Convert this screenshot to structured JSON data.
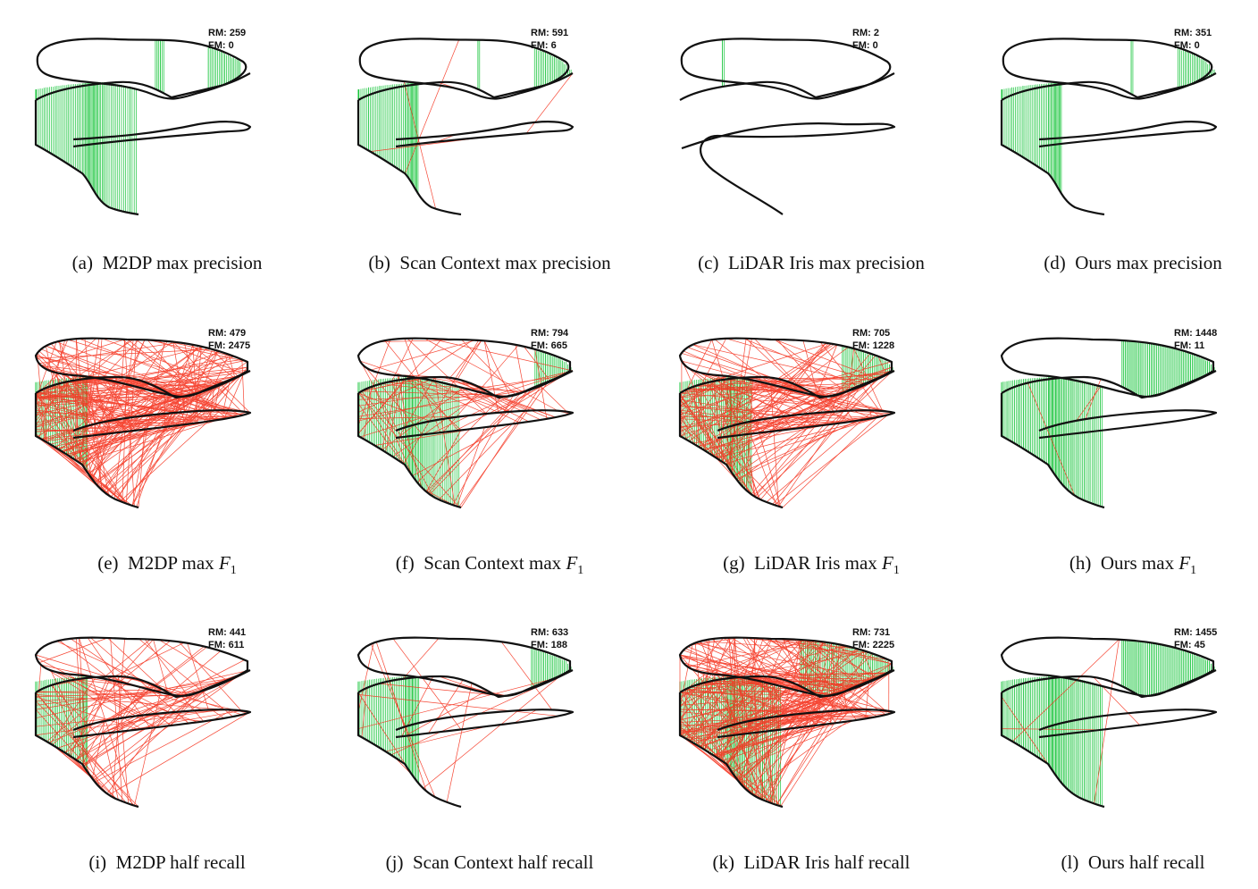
{
  "figure": {
    "panels": [
      {
        "label": "(a)",
        "method": "M2DP",
        "setting": "max precision",
        "rm_label": "RM: 259",
        "fm_label": "FM: 0",
        "variant": "two",
        "green": [
          [
            0,
            0.6
          ],
          [
            0.8,
            0.16
          ]
        ],
        "red": 0,
        "dense": false
      },
      {
        "label": "(b)",
        "method": "Scan Context",
        "setting": "max precision",
        "rm_label": "RM: 591",
        "fm_label": "FM: 6",
        "variant": "two",
        "green": [
          [
            0,
            0.4
          ],
          [
            0.82,
            0.18
          ],
          [
            0.55,
            0.02
          ]
        ],
        "red": 6,
        "dense": false
      },
      {
        "label": "(c)",
        "method": "LiDAR Iris",
        "setting": "max precision",
        "rm_label": "RM: 2",
        "fm_label": "FM: 0",
        "variant": "cross",
        "green": [
          [
            0.2,
            0.02
          ]
        ],
        "red": 0,
        "dense": false
      },
      {
        "label": "(d)",
        "method": "Ours",
        "setting": "max precision",
        "rm_label": "RM: 351",
        "fm_label": "FM: 0",
        "variant": "two",
        "green": [
          [
            0,
            0.4
          ],
          [
            0.82,
            0.18
          ],
          [
            0.6,
            0.02
          ]
        ],
        "red": 0,
        "dense": false
      },
      {
        "label": "(e)",
        "method": "M2DP",
        "setting": "max",
        "f1": true,
        "rm_label": "RM: 479",
        "fm_label": "FM: 2475",
        "variant": "stack",
        "green": [
          [
            0,
            0.35
          ]
        ],
        "red": 320,
        "dense": false
      },
      {
        "label": "(f)",
        "method": "Scan Context",
        "setting": "max",
        "f1": true,
        "rm_label": "RM: 794",
        "fm_label": "FM: 665",
        "variant": "stack",
        "green": [
          [
            0,
            0.4
          ],
          [
            0.82,
            0.18
          ],
          [
            0.4,
            0.15
          ]
        ],
        "red": 90,
        "dense": false
      },
      {
        "label": "(g)",
        "method": "LiDAR Iris",
        "setting": "max",
        "f1": true,
        "rm_label": "RM: 705",
        "fm_label": "FM: 1228",
        "variant": "stack",
        "green": [
          [
            0,
            0.45
          ],
          [
            0.75,
            0.25
          ]
        ],
        "red": 200,
        "dense": false
      },
      {
        "label": "(h)",
        "method": "Ours",
        "setting": "max",
        "f1": true,
        "rm_label": "RM: 1448",
        "fm_label": "FM: 11",
        "variant": "stack",
        "green": [
          [
            0,
            1.0
          ]
        ],
        "red": 3,
        "dense": true
      },
      {
        "label": "(i)",
        "method": "M2DP",
        "setting": "half recall",
        "rm_label": "RM: 441",
        "fm_label": "FM: 611",
        "variant": "stack",
        "green": [
          [
            0,
            0.35
          ]
        ],
        "red": 120,
        "dense": false
      },
      {
        "label": "(j)",
        "method": "Scan Context",
        "setting": "half recall",
        "rm_label": "RM: 633",
        "fm_label": "FM: 188",
        "variant": "stack",
        "green": [
          [
            0,
            0.4
          ],
          [
            0.8,
            0.2
          ]
        ],
        "red": 25,
        "dense": false
      },
      {
        "label": "(k)",
        "method": "LiDAR Iris",
        "setting": "half recall",
        "rm_label": "RM: 731",
        "fm_label": "FM: 2225",
        "variant": "stack",
        "green": [
          [
            0,
            1.0
          ]
        ],
        "red": 320,
        "dense": false
      },
      {
        "label": "(l)",
        "method": "Ours",
        "setting": "half recall",
        "rm_label": "RM: 1455",
        "fm_label": "FM: 45",
        "variant": "stack",
        "green": [
          [
            0,
            1.0
          ]
        ],
        "red": 6,
        "dense": true
      }
    ]
  }
}
